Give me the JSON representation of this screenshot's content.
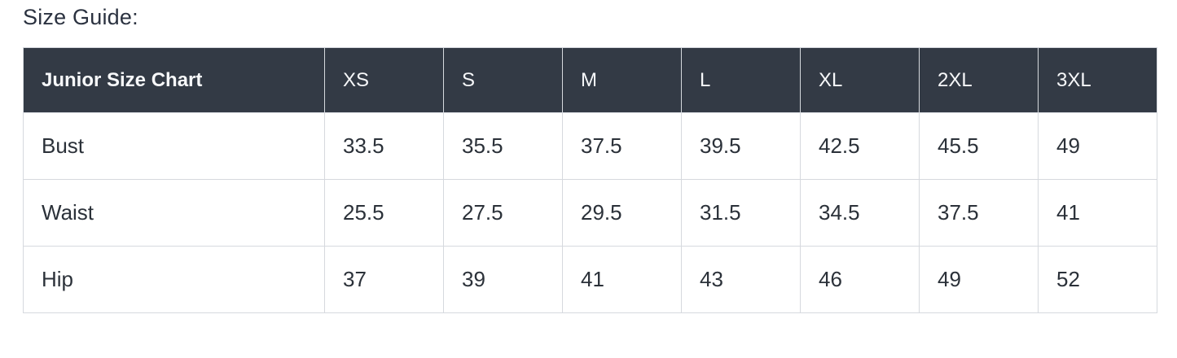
{
  "page_title": "Size Guide:",
  "chart_data": {
    "type": "table",
    "title": "Junior Size Chart",
    "columns": [
      "Junior Size Chart",
      "XS",
      "S",
      "M",
      "L",
      "XL",
      "2XL",
      "3XL"
    ],
    "rows": [
      {
        "label": "Bust",
        "values": [
          "33.5",
          "35.5",
          "37.5",
          "39.5",
          "42.5",
          "45.5",
          "49"
        ]
      },
      {
        "label": "Waist",
        "values": [
          "25.5",
          "27.5",
          "29.5",
          "31.5",
          "34.5",
          "37.5",
          "41"
        ]
      },
      {
        "label": "Hip",
        "values": [
          "37",
          "39",
          "41",
          "43",
          "46",
          "49",
          "52"
        ]
      }
    ]
  },
  "colors": {
    "header_background": "#333a45",
    "header_text": "#f7f8fa",
    "body_text": "#2b3139",
    "border": "#d6d9de"
  }
}
